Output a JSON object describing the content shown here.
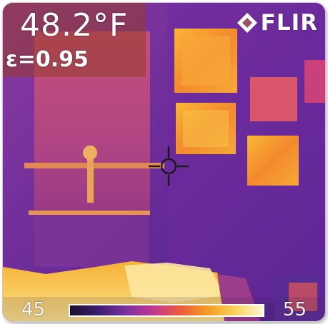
{
  "readout": {
    "temperature": "48.2°F",
    "emissivity": "ε=0.95"
  },
  "brand": {
    "name": "FLIR",
    "logo_icon": "flir-diamond-logo-icon"
  },
  "crosshair": {
    "icon": "crosshair-icon"
  },
  "scale": {
    "min": "45",
    "max": "55",
    "palette": [
      "#1a0f2e",
      "#3b1d6d",
      "#7a2fa0",
      "#c0398f",
      "#ec5c3c",
      "#f59c24",
      "#fbd35a",
      "#fff8d6"
    ]
  }
}
